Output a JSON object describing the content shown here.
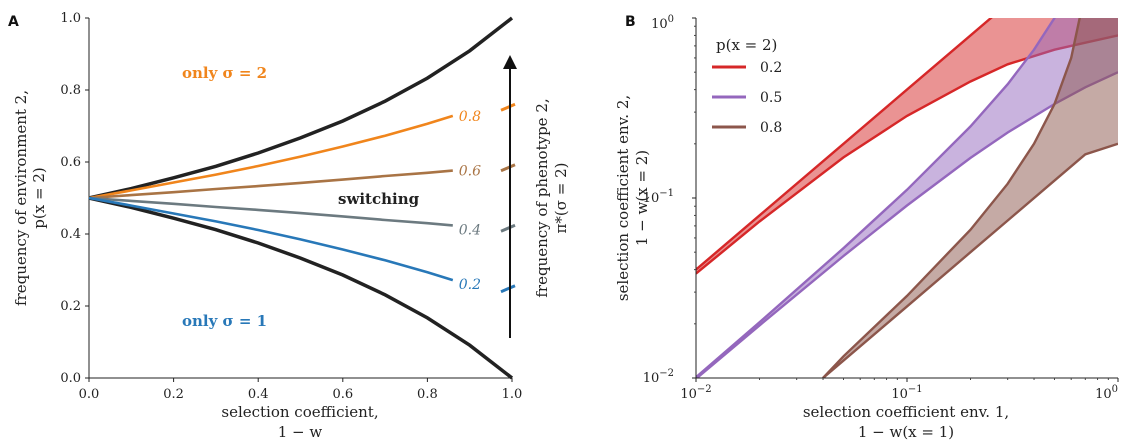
{
  "chart_data": [
    {
      "panel": "A",
      "type": "line",
      "xlabel": [
        "selection coefficient,",
        "1 − w"
      ],
      "ylabel": [
        "frequency of environment 2,",
        "p(x = 2)"
      ],
      "xlim": [
        0,
        1
      ],
      "ylim": [
        0,
        1
      ],
      "xticks": [
        "0.0",
        "0.2",
        "0.4",
        "0.6",
        "0.8",
        "1.0"
      ],
      "yticks": [
        "0.0",
        "0.2",
        "0.4",
        "0.6",
        "0.8",
        "1.0"
      ],
      "boundaries": {
        "color": "#222222",
        "upper": {
          "x": [
            0,
            0.1,
            0.2,
            0.3,
            0.4,
            0.5,
            0.6,
            0.7,
            0.8,
            0.9,
            1.0
          ],
          "y": [
            0.5,
            0.526,
            0.556,
            0.588,
            0.625,
            0.667,
            0.714,
            0.769,
            0.833,
            0.909,
            1.0
          ]
        },
        "lower": {
          "x": [
            0,
            0.1,
            0.2,
            0.3,
            0.4,
            0.5,
            0.6,
            0.7,
            0.8,
            0.9,
            1.0
          ],
          "y": [
            0.5,
            0.474,
            0.444,
            0.412,
            0.375,
            0.333,
            0.286,
            0.231,
            0.167,
            0.091,
            0.0
          ]
        }
      },
      "series": [
        {
          "label": "0.8",
          "color": "#f0851c",
          "x": [
            0,
            0.1,
            0.2,
            0.3,
            0.4,
            0.5,
            0.6,
            0.7,
            0.8,
            0.86
          ],
          "y": [
            0.5,
            0.521,
            0.543,
            0.565,
            0.589,
            0.615,
            0.643,
            0.673,
            0.706,
            0.728
          ]
        },
        {
          "label": "0.6",
          "color": "#a97445",
          "x": [
            0,
            0.1,
            0.2,
            0.3,
            0.4,
            0.5,
            0.6,
            0.7,
            0.8,
            0.86
          ],
          "y": [
            0.5,
            0.508,
            0.516,
            0.525,
            0.533,
            0.542,
            0.551,
            0.561,
            0.57,
            0.576
          ]
        },
        {
          "label": "0.4",
          "color": "#6c7a80",
          "x": [
            0,
            0.1,
            0.2,
            0.3,
            0.4,
            0.5,
            0.6,
            0.7,
            0.8,
            0.86
          ],
          "y": [
            0.5,
            0.492,
            0.484,
            0.475,
            0.467,
            0.458,
            0.449,
            0.439,
            0.43,
            0.424
          ]
        },
        {
          "label": "0.2",
          "color": "#2878b8",
          "x": [
            0,
            0.1,
            0.2,
            0.3,
            0.4,
            0.5,
            0.6,
            0.7,
            0.8,
            0.86
          ],
          "y": [
            0.5,
            0.479,
            0.457,
            0.435,
            0.411,
            0.385,
            0.357,
            0.327,
            0.294,
            0.272
          ]
        }
      ],
      "annotations": {
        "only_sigma2": "only σ = 2",
        "only_sigma1": "only σ = 1",
        "switching": "switching",
        "colors": {
          "only_sigma2": "#f0851c",
          "only_sigma1": "#2878b8",
          "switching": "#222222"
        }
      },
      "right_axis": {
        "label": [
          "frequency of phenotype 2,",
          "π*(σ = 2)"
        ]
      }
    },
    {
      "panel": "B",
      "type": "area",
      "xscale": "log",
      "yscale": "log",
      "xlim": [
        0.01,
        1
      ],
      "ylim": [
        0.01,
        1
      ],
      "xticks": [
        "10",
        "10",
        "10"
      ],
      "xtick_exponents": [
        "−2",
        "−1",
        "0"
      ],
      "yticks": [
        "10",
        "10",
        "10"
      ],
      "ytick_exponents": [
        "−2",
        "−1",
        "0"
      ],
      "xlabel": [
        "selection coefficient env. 1,",
        "1 − w(x = 1)"
      ],
      "ylabel": [
        "selection coefficient env. 2,",
        "1 − w(x = 2)"
      ],
      "legend": {
        "title": "p(x = 2)",
        "placement": "top-left"
      },
      "series": [
        {
          "name": "0.2",
          "color": "#d62728",
          "upper": {
            "x": [
              0.01,
              0.02,
              0.05,
              0.1,
              0.2,
              0.3,
              0.5
            ],
            "y": [
              0.04,
              0.08,
              0.2,
              0.4,
              0.8,
              1.2,
              2.0
            ]
          },
          "lower": {
            "x": [
              0.01,
              0.02,
              0.05,
              0.1,
              0.2,
              0.3,
              0.5,
              0.7,
              1.0
            ],
            "y": [
              0.038,
              0.074,
              0.168,
              0.286,
              0.444,
              0.553,
              0.667,
              0.729,
              0.8
            ]
          }
        },
        {
          "name": "0.5",
          "color": "#9467bd",
          "upper": {
            "x": [
              0.01,
              0.02,
              0.05,
              0.1,
              0.2,
              0.3,
              0.4,
              0.5,
              0.6,
              0.7
            ],
            "y": [
              0.0101,
              0.0204,
              0.0526,
              0.111,
              0.25,
              0.429,
              0.667,
              1.0,
              1.5,
              2.33
            ]
          },
          "lower": {
            "x": [
              0.01,
              0.02,
              0.05,
              0.1,
              0.2,
              0.3,
              0.5,
              0.7,
              1.0
            ],
            "y": [
              0.0099,
              0.0196,
              0.0476,
              0.0909,
              0.167,
              0.231,
              0.333,
              0.412,
              0.5
            ]
          }
        },
        {
          "name": "0.8",
          "color": "#8c564b",
          "upper": {
            "x": [
              0.04,
              0.05,
              0.1,
              0.2,
              0.3,
              0.4,
              0.5,
              0.6,
              0.7,
              0.75
            ],
            "y": [
              0.01,
              0.0132,
              0.0286,
              0.0667,
              0.12,
              0.2,
              0.333,
              0.6,
              1.4,
              3.0
            ]
          },
          "lower": {
            "x": [
              0.04,
              0.05,
              0.1,
              0.2,
              0.3,
              0.5,
              0.7,
              1.0
            ],
            "y": [
              0.01,
              0.0125,
              0.025,
              0.05,
              0.075,
              0.125,
              0.175,
              0.2
            ]
          }
        }
      ]
    }
  ]
}
